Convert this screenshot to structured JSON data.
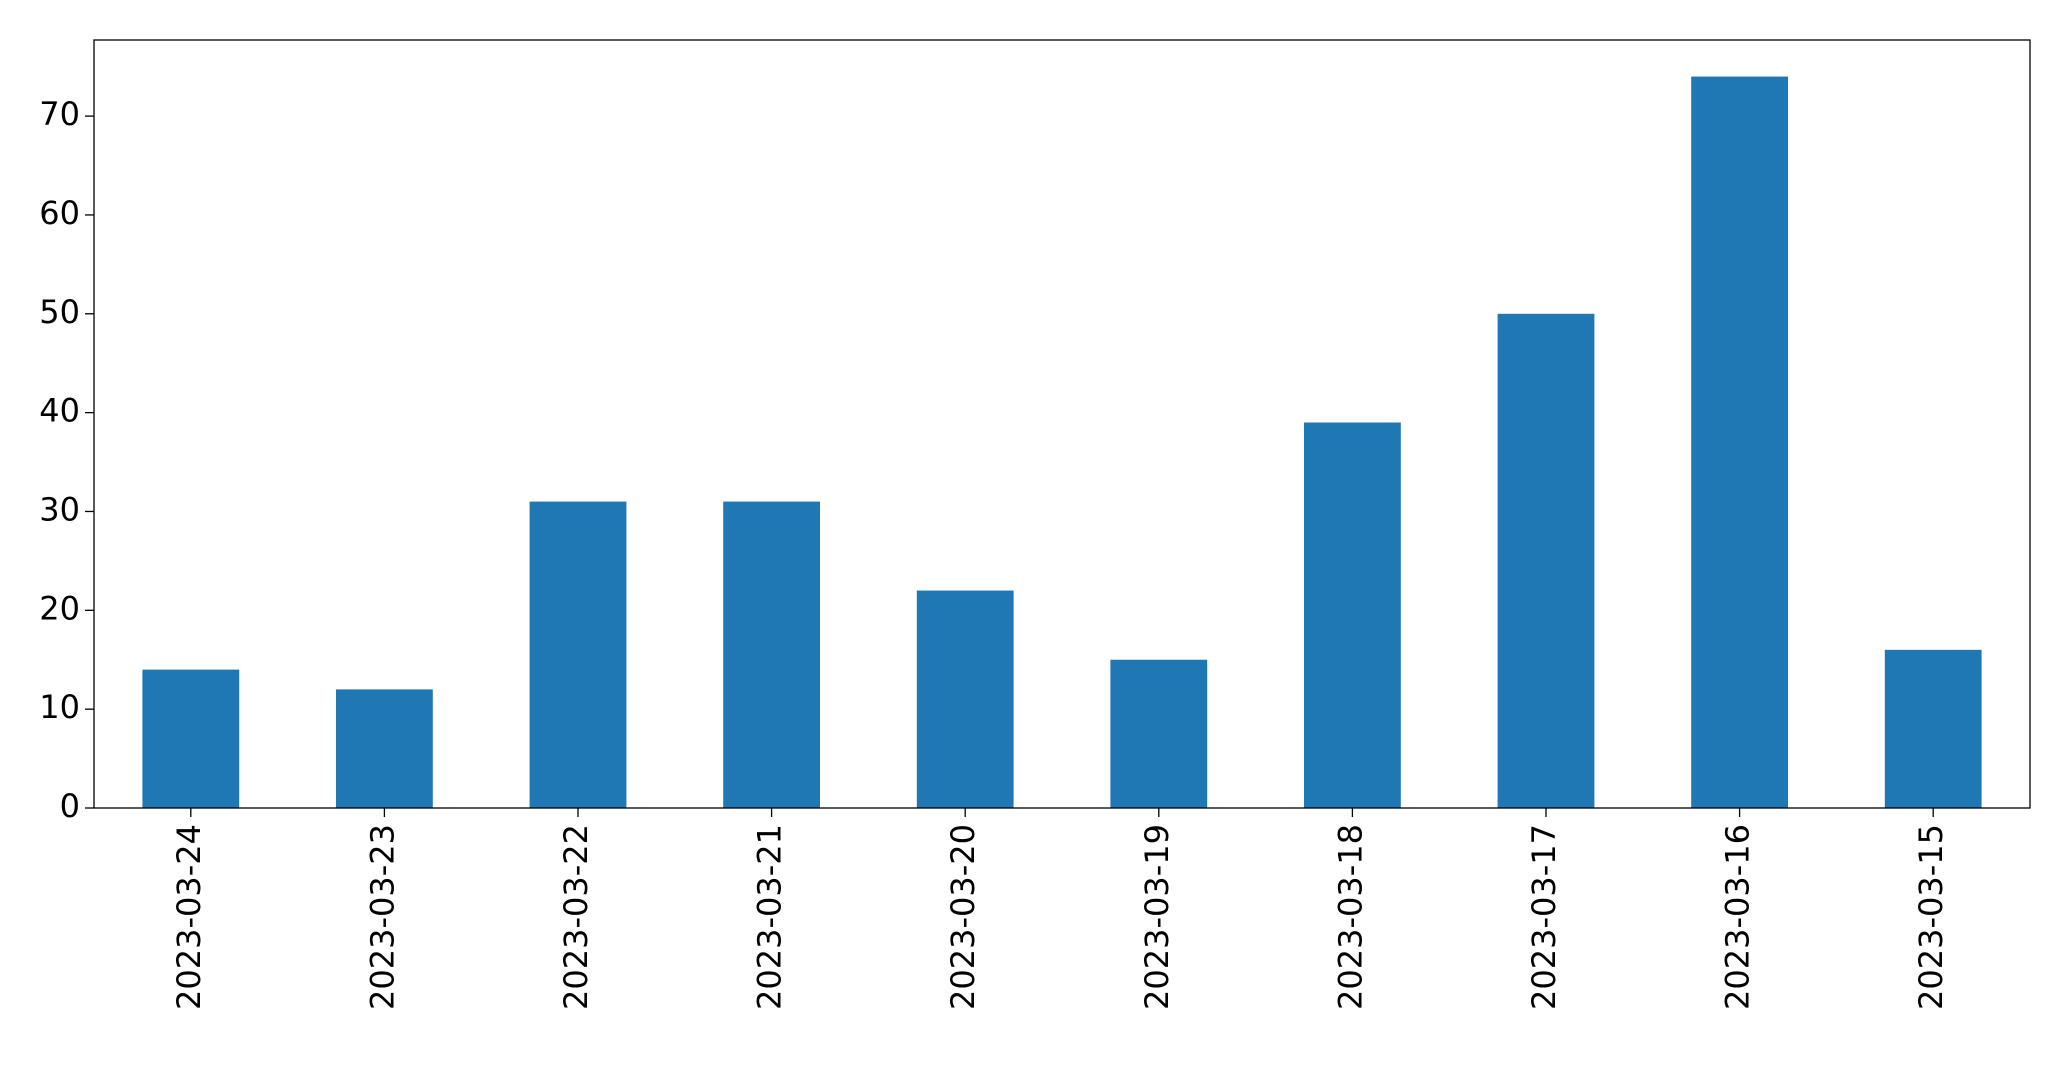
{
  "chart_data": {
    "type": "bar",
    "categories": [
      "2023-03-24",
      "2023-03-23",
      "2023-03-22",
      "2023-03-21",
      "2023-03-20",
      "2023-03-19",
      "2023-03-18",
      "2023-03-17",
      "2023-03-16",
      "2023-03-15"
    ],
    "values": [
      14,
      12,
      31,
      31,
      22,
      15,
      39,
      50,
      74,
      16
    ],
    "color": "#1f77b4",
    "ylim": [
      0,
      77.7
    ],
    "yticks": [
      0,
      10,
      20,
      30,
      40,
      50,
      60,
      70
    ],
    "grid": false
  }
}
